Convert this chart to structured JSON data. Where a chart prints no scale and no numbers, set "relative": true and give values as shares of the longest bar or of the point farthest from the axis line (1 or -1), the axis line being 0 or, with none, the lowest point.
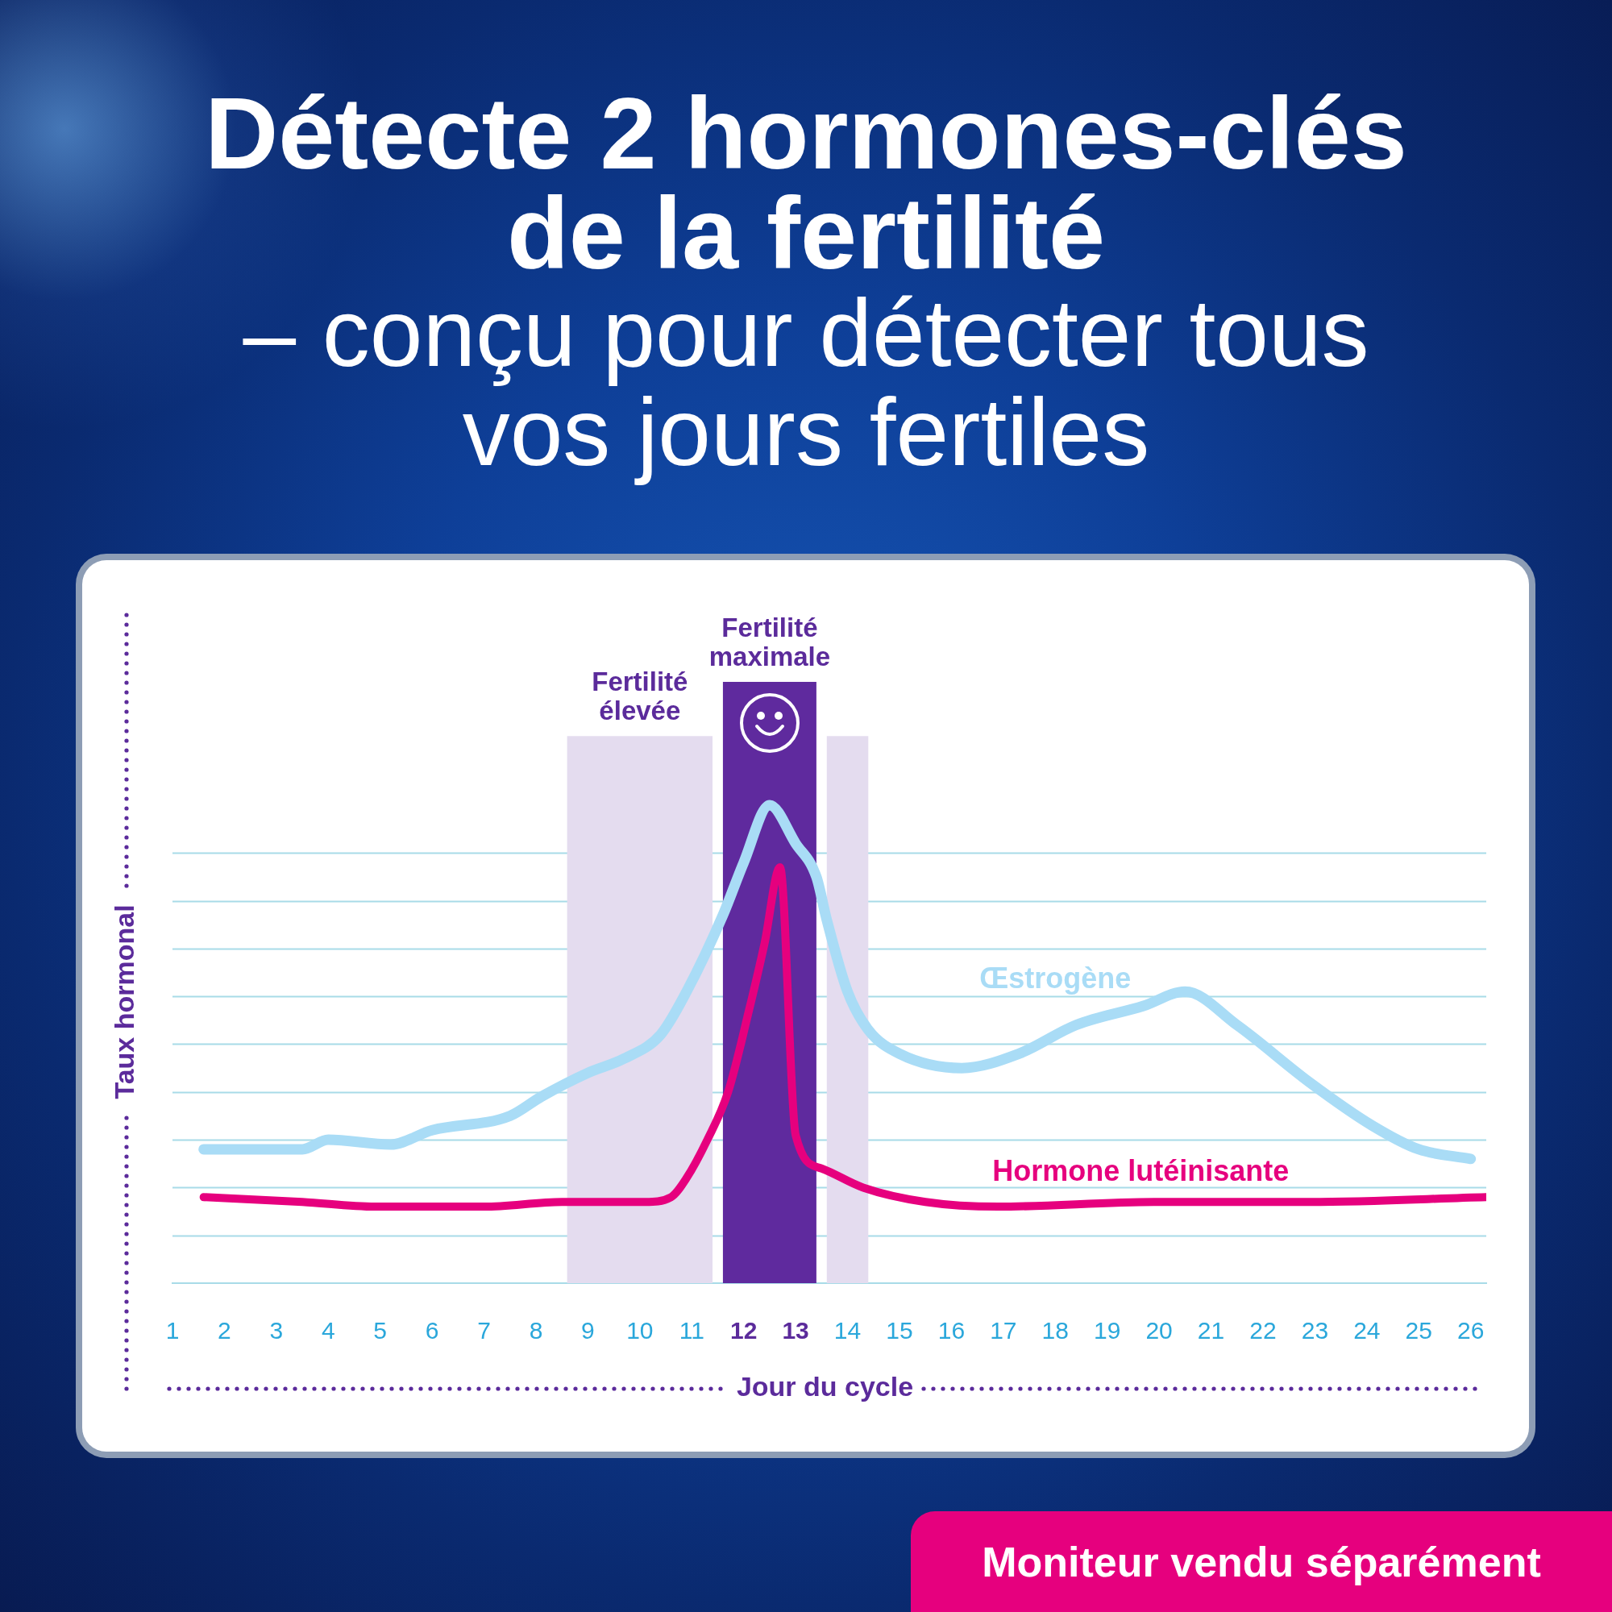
{
  "chart_data": {
    "type": "line",
    "title": "Détecte 2 hormones-clés de la fertilité",
    "subtitle": "– conçu pour détecter tous vos jours fertiles",
    "xlabel": "Jour du cycle",
    "ylabel": "Taux hormonal",
    "relative": true,
    "xlim": [
      1,
      26.3
    ],
    "xticks": [
      1,
      2,
      3,
      4,
      5,
      6,
      7,
      8,
      9,
      10,
      11,
      12,
      13,
      14,
      15,
      16,
      17,
      18,
      19,
      20,
      21,
      22,
      23,
      24,
      25,
      26
    ],
    "ref_lines": [
      {
        "axis": "y",
        "value": 0.1,
        "color": "#a8dbe8"
      },
      {
        "axis": "y",
        "value": 0.2,
        "color": "#a8dbe8"
      },
      {
        "axis": "y",
        "value": 0.3,
        "color": "#a8dbe8"
      },
      {
        "axis": "y",
        "value": 0.4,
        "color": "#a8dbe8"
      },
      {
        "axis": "y",
        "value": 0.5,
        "color": "#a8dbe8"
      },
      {
        "axis": "y",
        "value": 0.6,
        "color": "#a8dbe8"
      },
      {
        "axis": "y",
        "value": 0.7,
        "color": "#a8dbe8"
      },
      {
        "axis": "y",
        "value": 0.8,
        "color": "#a8dbe8"
      },
      {
        "axis": "y",
        "value": 0.9,
        "color": "#a8dbe8"
      }
    ],
    "series": [
      {
        "name": "Œstrogène",
        "color": "#a9dcf6",
        "x": [
          1.6,
          3.5,
          4.0,
          5.2,
          6.0,
          7.5,
          8.1,
          9.0,
          9.7,
          10.4,
          10.9,
          11.6,
          12.0,
          12.5,
          13.0,
          13.4,
          13.6,
          14.0,
          14.4,
          15.0,
          16.2,
          17.3,
          18.4,
          19.7,
          20.5,
          21.5,
          22.9,
          24.1,
          25.0,
          26.0
        ],
        "values": [
          0.28,
          0.28,
          0.3,
          0.29,
          0.32,
          0.35,
          0.39,
          0.44,
          0.47,
          0.52,
          0.61,
          0.77,
          0.88,
          1,
          0.92,
          0.85,
          0.76,
          0.61,
          0.53,
          0.48,
          0.45,
          0.48,
          0.54,
          0.58,
          0.61,
          0.54,
          0.42,
          0.33,
          0.28,
          0.26
        ]
      },
      {
        "name": "Hormone lutéinisante",
        "color": "#e6007e",
        "x": [
          1.6,
          3.5,
          4.9,
          7.0,
          8.5,
          10.1,
          10.6,
          10.9,
          11.3,
          11.7,
          12.1,
          12.4,
          12.7,
          13.0,
          13.5,
          14.3,
          15.5,
          16.9,
          19.9,
          22.9,
          26.3
        ],
        "values": [
          0.18,
          0.17,
          0.16,
          0.16,
          0.17,
          0.17,
          0.18,
          0.22,
          0.3,
          0.4,
          0.57,
          0.71,
          0.87,
          0.31,
          0.24,
          0.2,
          0.17,
          0.16,
          0.17,
          0.17,
          0.18
        ]
      }
    ],
    "bands": [
      {
        "axis": "x",
        "from": 8.6,
        "to": 11.4,
        "label": "Fertilité élevée",
        "color": "#e4dcef"
      },
      {
        "axis": "x",
        "from": 11.6,
        "to": 13.4,
        "label": "Fertilité maximale",
        "color": "#5f2a9e"
      },
      {
        "axis": "x",
        "from": 13.6,
        "to": 14.4,
        "color": "#e4dcef"
      }
    ],
    "annotations": [
      "Moniteur vendu séparément"
    ]
  }
}
